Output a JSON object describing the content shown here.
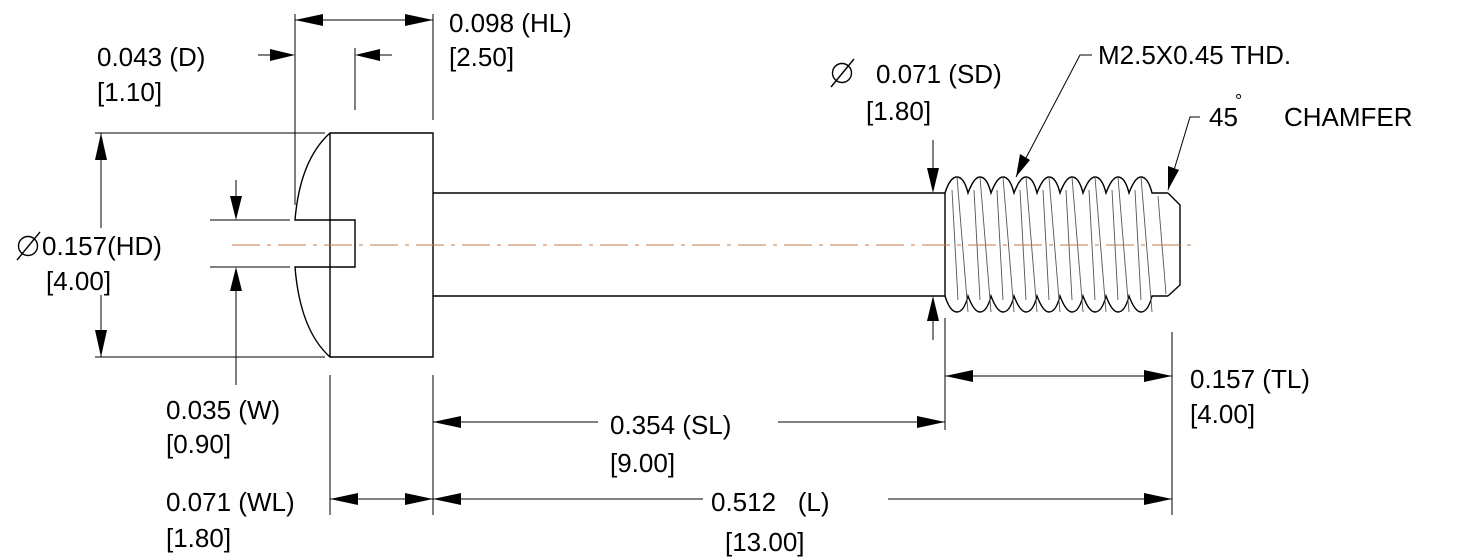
{
  "dimensions": {
    "hl": {
      "imperial": "0.098 (HL)",
      "metric": "[2.50]"
    },
    "d": {
      "imperial": "0.043 (D)",
      "metric": "[1.10]"
    },
    "hd": {
      "symbol": "∅",
      "imperial": "0.157(HD)",
      "metric": "[4.00]"
    },
    "sd": {
      "symbol": "∅",
      "imperial": "0.071 (SD)",
      "metric": "[1.80]"
    },
    "thread": {
      "callout": "M2.5X0.45 THD."
    },
    "chamfer": {
      "angle": "45",
      "degree": "°",
      "label": "CHAMFER"
    },
    "w": {
      "imperial": "0.035 (W)",
      "metric": "[0.90]"
    },
    "tl": {
      "imperial": "0.157 (TL)",
      "metric": "[4.00]"
    },
    "sl": {
      "imperial": "0.354 (SL)",
      "metric": "[9.00]"
    },
    "wl": {
      "imperial": "0.071 (WL)",
      "metric": "[1.80]"
    },
    "l": {
      "imperial": "0.512   (L)",
      "metric": "[13.00]"
    }
  },
  "colors": {
    "line": "#000000",
    "centerline": "#c07a48",
    "thread": "#555555"
  }
}
